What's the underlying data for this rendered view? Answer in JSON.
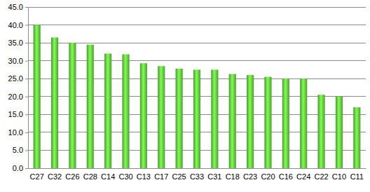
{
  "chart_data": {
    "type": "bar",
    "categories": [
      "C27",
      "C32",
      "C26",
      "C28",
      "C14",
      "C30",
      "C13",
      "C17",
      "C25",
      "C33",
      "C31",
      "C18",
      "C23",
      "C20",
      "C16",
      "C24",
      "C22",
      "C10",
      "C11"
    ],
    "values": [
      40.0,
      36.5,
      35.0,
      34.5,
      32.0,
      31.8,
      29.3,
      28.5,
      27.8,
      27.5,
      27.5,
      26.3,
      26.0,
      25.5,
      25.0,
      25.0,
      20.5,
      20.0,
      17.0
    ],
    "color": "#5cbf3a",
    "ylim": [
      0,
      45
    ],
    "yticks": [
      {
        "value": 0,
        "label": "0.0"
      },
      {
        "value": 5,
        "label": "5.0"
      },
      {
        "value": 10,
        "label": "10.0"
      },
      {
        "value": 15,
        "label": "15.0"
      },
      {
        "value": 20,
        "label": "20.0"
      },
      {
        "value": 25,
        "label": "25.0"
      },
      {
        "value": 30,
        "label": "30.0"
      },
      {
        "value": 35,
        "label": "35.0"
      },
      {
        "value": 40,
        "label": "40.0"
      },
      {
        "value": 45,
        "label": "45.0"
      }
    ],
    "grid": true
  }
}
